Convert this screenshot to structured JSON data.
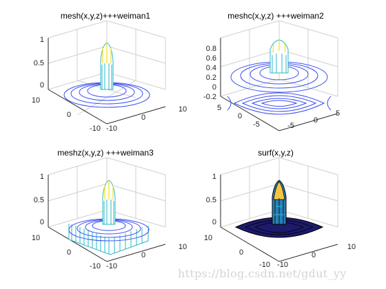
{
  "chart_data": [
    {
      "type": "mesh",
      "title": "mesh(x,y,z)+++weiman1",
      "x_ticks": [
        "10",
        "0",
        "-10"
      ],
      "y_ticks": [
        "10",
        "0",
        "-10"
      ],
      "z_ticks": [
        "1",
        "0.5",
        "0"
      ],
      "zlim": [
        -0.2,
        1
      ],
      "surface": "sin(r)/r",
      "grid": true
    },
    {
      "type": "meshc",
      "title": "meshc(x,y,z) +++weiman2",
      "x_ticks": [
        "5",
        "0",
        "-5"
      ],
      "y_ticks": [
        "5",
        "0",
        "-5"
      ],
      "z_ticks": [
        "0.8",
        "0.6",
        "0.4",
        "0.2",
        "0",
        "-0.2"
      ],
      "zlim": [
        -0.2,
        0.9
      ],
      "surface": "sin(r)/r",
      "contour": true,
      "grid": true
    },
    {
      "type": "meshz",
      "title": "meshz(x,y,z) +++weiman3",
      "x_ticks": [
        "10",
        "0",
        "-10"
      ],
      "y_ticks": [
        "10",
        "0",
        "-10"
      ],
      "z_ticks": [
        "1",
        "0.5",
        "0"
      ],
      "zlim": [
        -0.2,
        1
      ],
      "surface": "sin(r)/r",
      "curtain": true,
      "grid": true
    },
    {
      "type": "surf",
      "title": "surf(x,y,z)",
      "x_ticks": [
        "10",
        "0",
        "-10"
      ],
      "y_ticks": [
        "10",
        "0",
        "-10"
      ],
      "z_ticks": [
        "1",
        "0.5",
        "0"
      ],
      "zlim": [
        -0.2,
        1
      ],
      "surface": "sin(r)/r",
      "grid": true
    }
  ],
  "watermark": "https://blog.csdn.net/gdut_yy",
  "colors": {
    "mesh_low": "#3a4df2",
    "mesh_mid": "#27b7c9",
    "mesh_high": "#f5e22a",
    "surf_low": "#1d1b6b",
    "box_edge": "#cfcfcf",
    "axis": "#262626"
  }
}
